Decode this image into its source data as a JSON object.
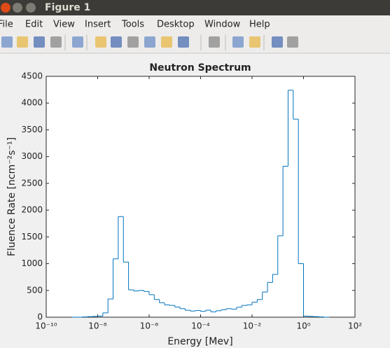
{
  "window": {
    "title": "Figure 1",
    "menu": [
      "File",
      "Edit",
      "View",
      "Insert",
      "Tools",
      "Desktop",
      "Window",
      "Help"
    ]
  },
  "chart_data": {
    "type": "histogram",
    "title": "Neutron Spectrum",
    "x_label": "Energy [Mev]",
    "y_label": "Fluence Rate [ncm⁻²s⁻¹]",
    "x_scale": "log",
    "color": "#0072bd",
    "bins": [
      1e-09,
      1.585e-09,
      2.512e-09,
      3.981e-09,
      6.31e-09,
      1e-08,
      1.585e-08,
      2.512e-08,
      3.981e-08,
      6.31e-08,
      1e-07,
      1.585e-07,
      2.512e-07,
      3.981e-07,
      6.31e-07,
      1e-06,
      1.585e-06,
      2.512e-06,
      3.981e-06,
      6.31e-06,
      1e-05,
      1.585e-05,
      2.512e-05,
      3.981e-05,
      6.31e-05,
      0.0001,
      0.0001585,
      0.0002512,
      0.0003981,
      0.000631,
      0.001,
      0.001585,
      0.002512,
      0.003981,
      0.00631,
      0.01,
      0.01585,
      0.02512,
      0.03981,
      0.0631,
      0.1,
      0.1585,
      0.2512,
      0.3981,
      0.631,
      1,
      1.585,
      2.512,
      3.981,
      6.31,
      10
    ],
    "values": [
      0,
      0,
      5,
      10,
      15,
      20,
      80,
      340,
      1090,
      1880,
      1030,
      510,
      490,
      500,
      480,
      420,
      330,
      270,
      230,
      220,
      190,
      160,
      130,
      115,
      125,
      110,
      130,
      100,
      120,
      140,
      160,
      150,
      185,
      220,
      230,
      280,
      330,
      470,
      650,
      800,
      1520,
      2820,
      4240,
      3700,
      1000,
      20,
      15,
      10,
      5,
      0
    ],
    "xlim": [
      1e-10,
      100
    ],
    "xticks": [
      {
        "value": 1e-10,
        "label": "10⁻¹⁰"
      },
      {
        "value": 1e-08,
        "label": "10⁻⁸"
      },
      {
        "value": 1e-06,
        "label": "10⁻⁶"
      },
      {
        "value": 0.0001,
        "label": "10⁻⁴"
      },
      {
        "value": 0.01,
        "label": "10⁻²"
      },
      {
        "value": 1,
        "label": "10⁰"
      },
      {
        "value": 100,
        "label": "10²"
      }
    ],
    "ylim": [
      0,
      4500
    ],
    "yticks": [
      0,
      500,
      1000,
      1500,
      2000,
      2500,
      3000,
      3500,
      4000,
      4500
    ],
    "grid": false
  }
}
